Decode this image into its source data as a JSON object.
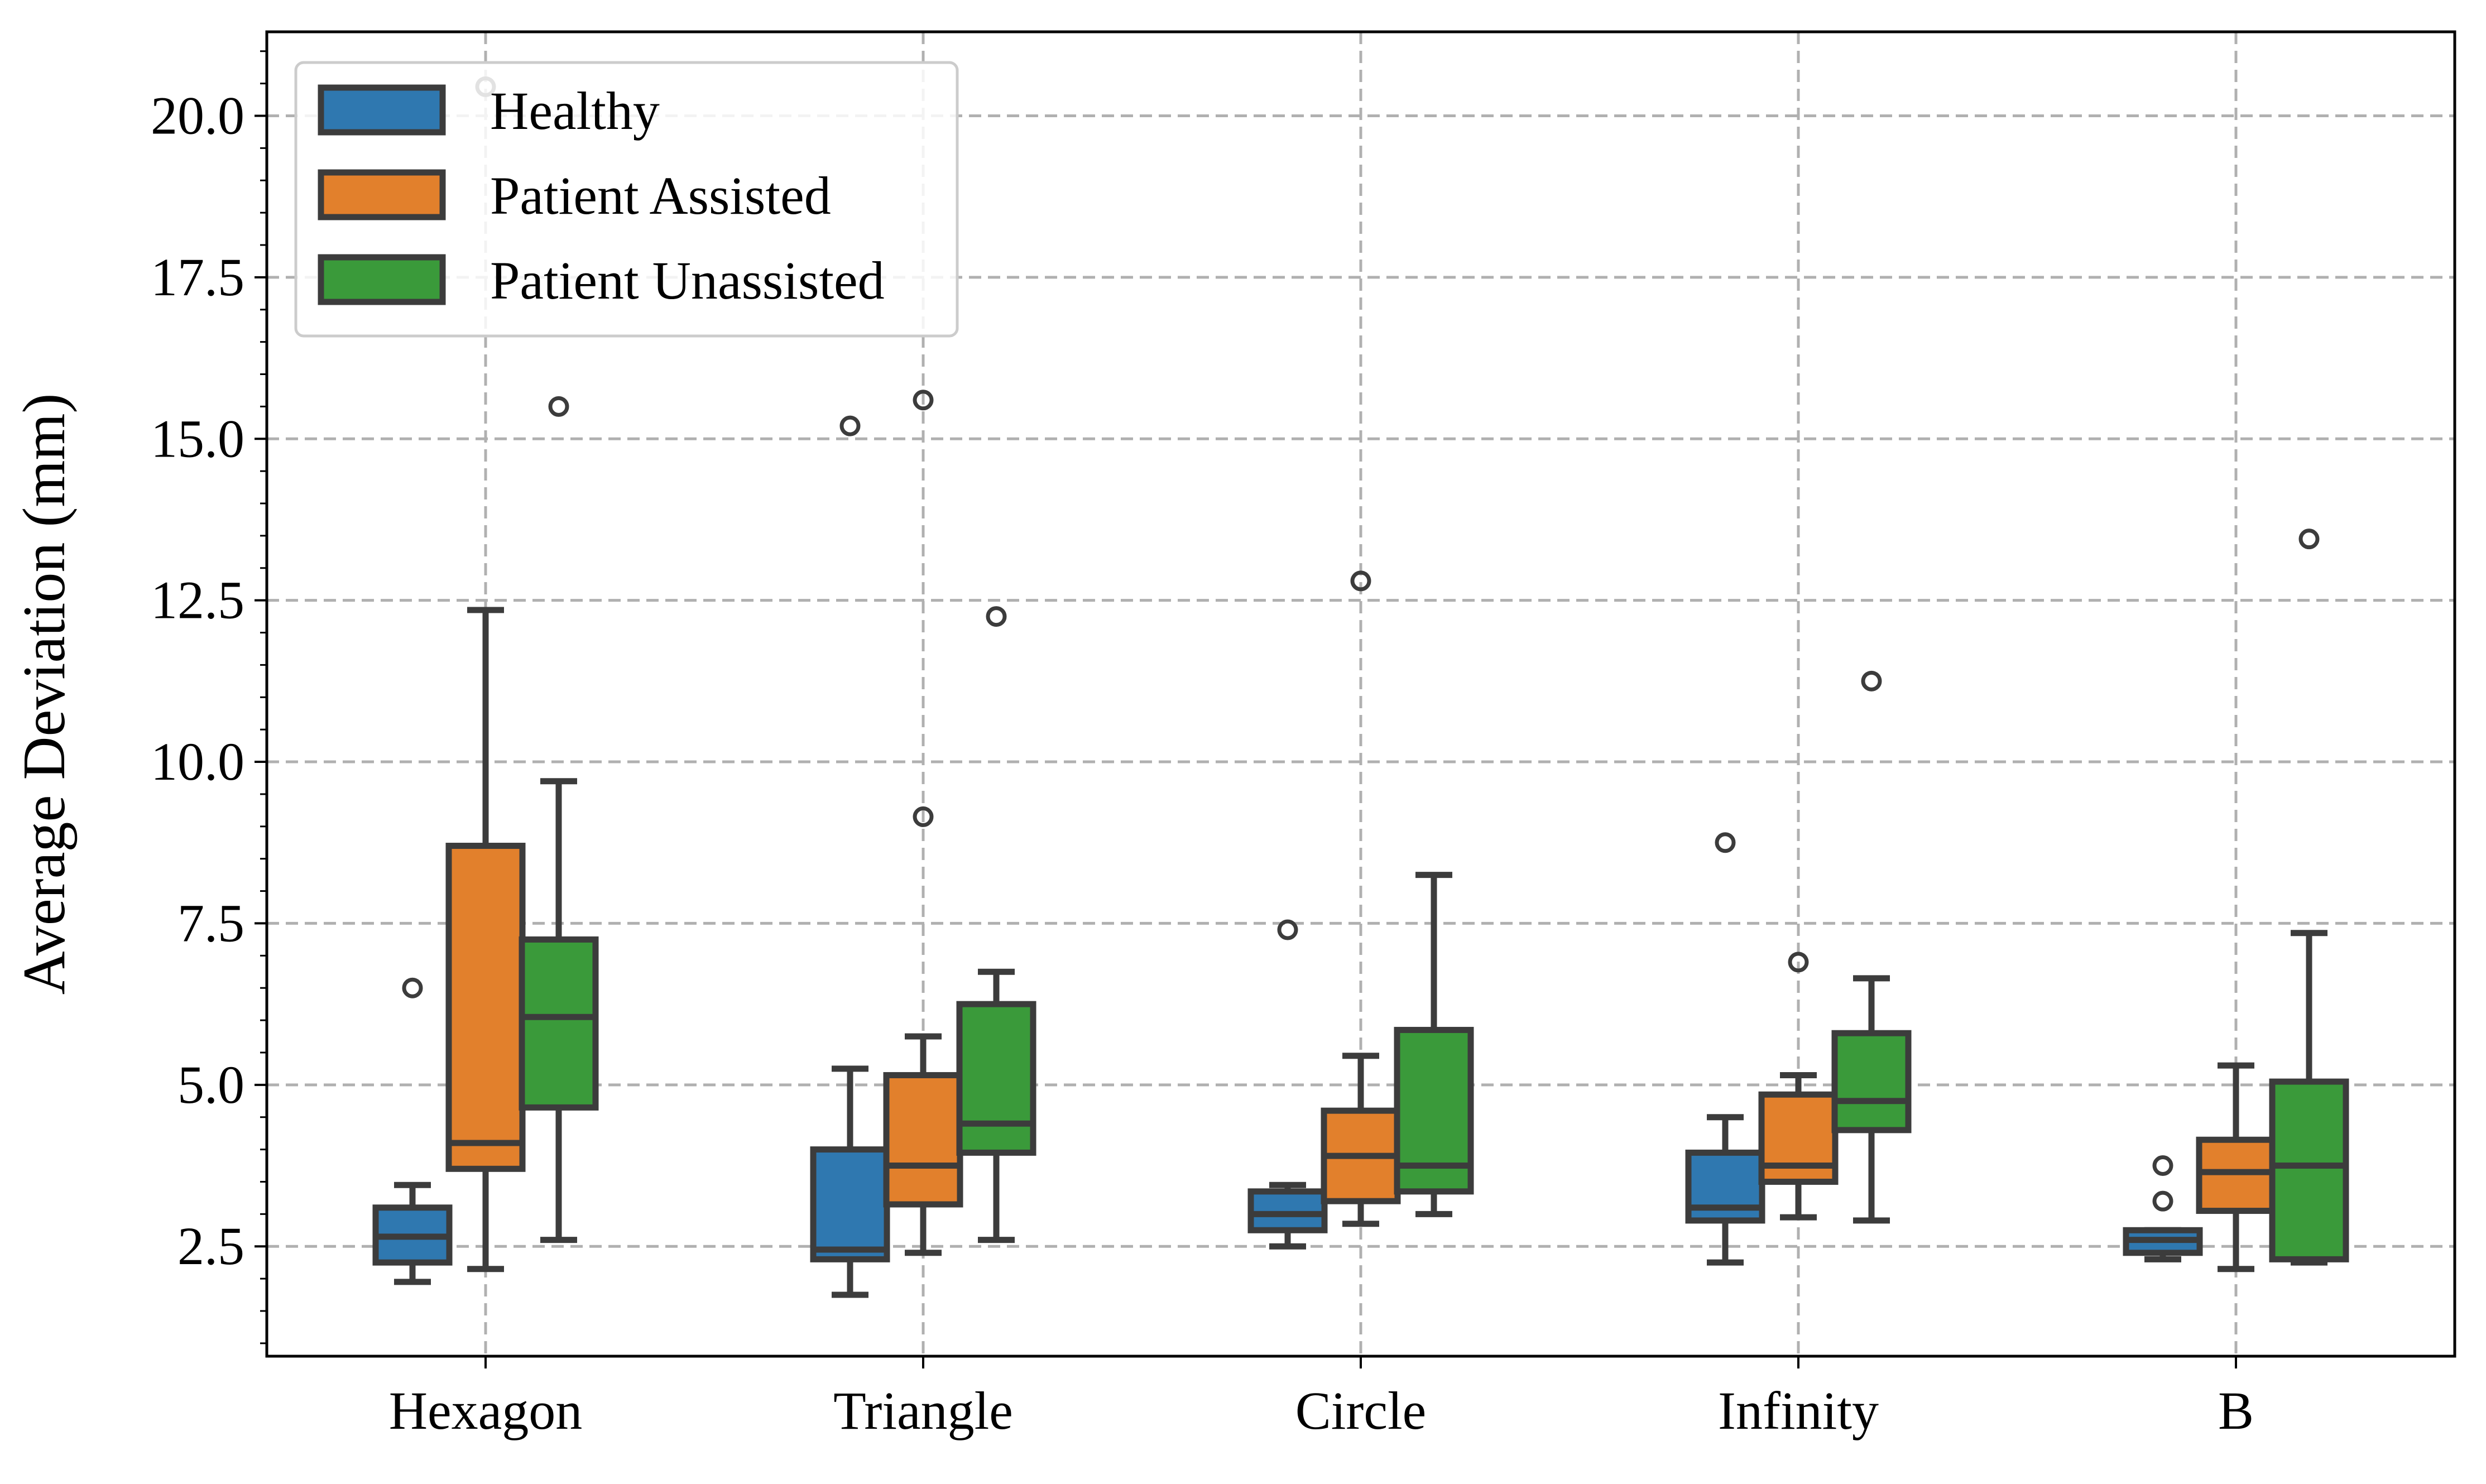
{
  "chart_data": {
    "type": "box",
    "title": "",
    "xlabel": "",
    "ylabel": "Average Deviation (mm)",
    "ylim": [
      0.8,
      21.3
    ],
    "yticks": [
      "2.5",
      "5.0",
      "7.5",
      "10.0",
      "12.5",
      "15.0",
      "17.5",
      "20.0"
    ],
    "ytick_values": [
      2.5,
      5.0,
      7.5,
      10.0,
      12.5,
      15.0,
      17.5,
      20.0
    ],
    "categories": [
      "Hexagon",
      "Triangle",
      "Circle",
      "Infinity",
      "B"
    ],
    "grid": true,
    "legend_position": "top-left",
    "series": [
      {
        "name": "Healthy",
        "color": "#2f78b0",
        "boxes": [
          {
            "whisker_low": 1.95,
            "q1": 2.25,
            "median": 2.65,
            "q3": 3.1,
            "whisker_high": 3.45,
            "outliers": [
              6.5
            ]
          },
          {
            "whisker_low": 1.75,
            "q1": 2.3,
            "median": 2.45,
            "q3": 4.0,
            "whisker_high": 5.25,
            "outliers": [
              15.2
            ]
          },
          {
            "whisker_low": 2.5,
            "q1": 2.75,
            "median": 3.0,
            "q3": 3.35,
            "whisker_high": 3.45,
            "outliers": [
              7.4
            ]
          },
          {
            "whisker_low": 2.25,
            "q1": 2.9,
            "median": 3.1,
            "q3": 3.95,
            "whisker_high": 4.5,
            "outliers": [
              8.75
            ]
          },
          {
            "whisker_low": 2.3,
            "q1": 2.4,
            "median": 2.6,
            "q3": 2.75,
            "whisker_high": 2.75,
            "outliers": [
              3.2,
              3.75
            ]
          }
        ]
      },
      {
        "name": "Patient Assisted",
        "color": "#e2802c",
        "boxes": [
          {
            "whisker_low": 2.15,
            "q1": 3.7,
            "median": 4.1,
            "q3": 8.7,
            "whisker_high": 12.35,
            "outliers": [
              20.45
            ]
          },
          {
            "whisker_low": 2.4,
            "q1": 3.15,
            "median": 3.75,
            "q3": 5.15,
            "whisker_high": 5.75,
            "outliers": [
              9.15,
              15.6
            ]
          },
          {
            "whisker_low": 2.85,
            "q1": 3.2,
            "median": 3.9,
            "q3": 4.6,
            "whisker_high": 5.45,
            "outliers": [
              12.8
            ]
          },
          {
            "whisker_low": 2.95,
            "q1": 3.5,
            "median": 3.75,
            "q3": 4.85,
            "whisker_high": 5.15,
            "outliers": [
              6.9
            ]
          },
          {
            "whisker_low": 2.15,
            "q1": 3.05,
            "median": 3.65,
            "q3": 4.15,
            "whisker_high": 5.3,
            "outliers": []
          }
        ]
      },
      {
        "name": "Patient Unassisted",
        "color": "#3a9a3a",
        "boxes": [
          {
            "whisker_low": 2.6,
            "q1": 4.65,
            "median": 6.05,
            "q3": 7.25,
            "whisker_high": 9.7,
            "outliers": [
              15.5
            ]
          },
          {
            "whisker_low": 2.6,
            "q1": 3.95,
            "median": 4.4,
            "q3": 6.25,
            "whisker_high": 6.75,
            "outliers": [
              12.25
            ]
          },
          {
            "whisker_low": 3.0,
            "q1": 3.35,
            "median": 3.75,
            "q3": 5.85,
            "whisker_high": 8.25,
            "outliers": []
          },
          {
            "whisker_low": 2.9,
            "q1": 4.3,
            "median": 4.75,
            "q3": 5.8,
            "whisker_high": 6.65,
            "outliers": [
              11.25
            ]
          },
          {
            "whisker_low": 2.25,
            "q1": 2.3,
            "median": 3.75,
            "q3": 5.05,
            "whisker_high": 7.35,
            "outliers": [
              13.45
            ]
          }
        ]
      }
    ]
  }
}
